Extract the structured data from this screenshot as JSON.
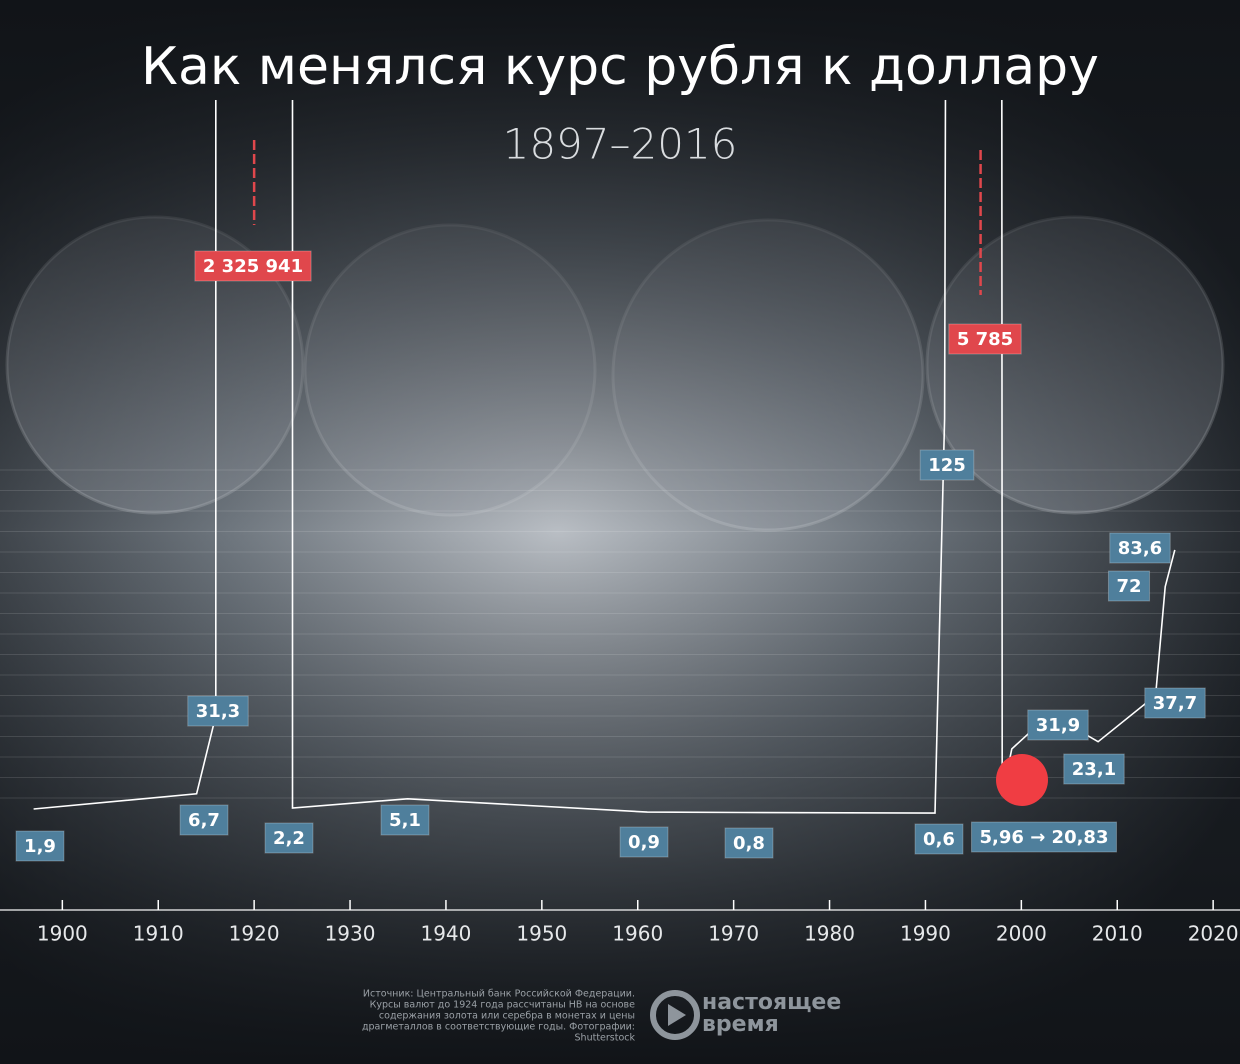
{
  "chart_data": {
    "type": "line",
    "title": "Как менялся курс рубля к доллару",
    "subtitle": "1897–2016",
    "x": [
      1897,
      1914,
      1916,
      1920,
      1924,
      1936,
      1961,
      1971,
      1991,
      1992,
      1997,
      1998,
      1999,
      2003,
      2008,
      2014,
      2015,
      2016
    ],
    "series": [
      {
        "color": "#ffffff",
        "values": [
          1.9,
          6.7,
          31.3,
          2325941,
          2.2,
          5.1,
          0.9,
          0.8,
          0.6,
          125,
          5785,
          5.96,
          20.83,
          31.9,
          23.1,
          37.7,
          72,
          83.6
        ],
        "value_labels": [
          "1,9",
          "6,7",
          "31,3",
          "2 325 941",
          "2,2",
          "5,1",
          "0,9",
          "0,8",
          "0,6",
          "125",
          "5 785",
          null,
          null,
          "31,9",
          "23,1",
          "37,7",
          "72",
          "83,6"
        ],
        "label_colors": [
          "#4f7f9c",
          "#4f7f9c",
          "#4f7f9c",
          "#e0474c",
          "#4f7f9c",
          "#4f7f9c",
          "#4f7f9c",
          "#4f7f9c",
          "#4f7f9c",
          "#4f7f9c",
          "#e0474c",
          null,
          null,
          "#4f7f9c",
          "#4f7f9c",
          "#4f7f9c",
          "#4f7f9c",
          "#4f7f9c"
        ]
      }
    ],
    "annotation": "5,96 → 20,83",
    "marker_color": "#f03d43",
    "xlim": [
      1893.5,
      2022.8
    ],
    "ylim": [
      0,
      216
    ],
    "xticks": [
      1900,
      1910,
      1920,
      1930,
      1940,
      1950,
      1960,
      1970,
      1980,
      1990,
      2000,
      2010,
      2020
    ],
    "source_lines": [
      "Источник: Центральный банк Российской Федерации.",
      "Курсы валют до 1924 года рассчитаны НВ на основе",
      "содержания золота или серебра в монетах и цены",
      "драгметаллов в соответствующие годы. Фотографии:",
      "Shutterstock"
    ],
    "logo": [
      "настоящее",
      "время"
    ]
  }
}
